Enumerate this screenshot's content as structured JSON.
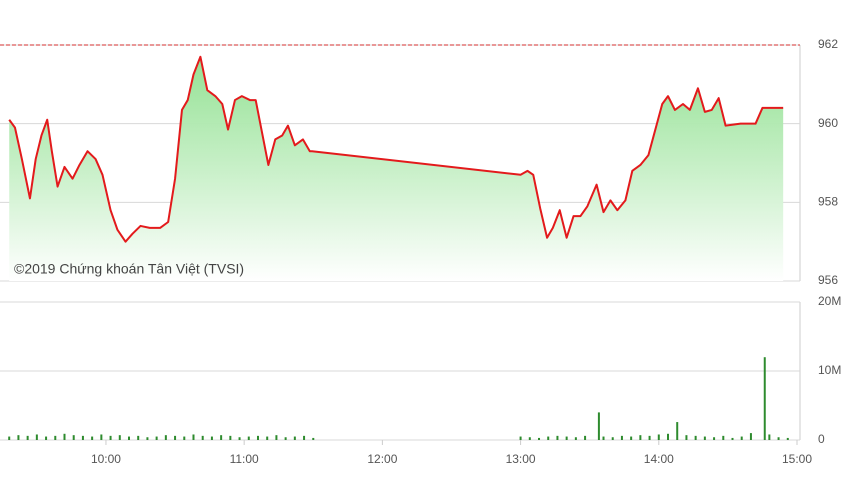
{
  "chart_data": [
    {
      "type": "line",
      "annotation": "©2019 Chứng khoán Tân Việt (TVSI)",
      "x": [
        558,
        560.5,
        563.5,
        567,
        569.5,
        572,
        574.5,
        576.5,
        579,
        582,
        585.5,
        588.5,
        592,
        595.5,
        598.5,
        602,
        605,
        608.5,
        611.5,
        615,
        619,
        623.5,
        627,
        630,
        633,
        635.5,
        638,
        641,
        644,
        647.5,
        650.5,
        653,
        656,
        659,
        662.5,
        665,
        668,
        670.5,
        673.5,
        676.5,
        679,
        682,
        685.5,
        688.5,
        689.5,
        780,
        783,
        785.5,
        788.5,
        791.5,
        794,
        797,
        800,
        803,
        806,
        809,
        813,
        816,
        819,
        822,
        825.5,
        828.5,
        832,
        835.5,
        838.5,
        841.5,
        844,
        847,
        850.5,
        853.5,
        857,
        860,
        863,
        866,
        869,
        875.5,
        882,
        885,
        894
      ],
      "values": [
        960.1,
        959.9,
        959.1,
        958.1,
        959.1,
        959.7,
        960.1,
        959.3,
        958.4,
        958.9,
        958.6,
        958.95,
        959.3,
        959.1,
        958.7,
        957.8,
        957.3,
        957.0,
        957.2,
        957.4,
        957.35,
        957.35,
        957.5,
        958.6,
        960.35,
        960.6,
        961.25,
        961.7,
        960.85,
        960.7,
        960.5,
        959.85,
        960.6,
        960.7,
        960.6,
        960.6,
        959.7,
        958.95,
        959.6,
        959.7,
        959.95,
        959.45,
        959.6,
        959.3,
        959.3,
        958.7,
        958.8,
        958.7,
        957.85,
        957.1,
        957.35,
        957.8,
        957.1,
        957.65,
        957.65,
        957.9,
        958.45,
        957.75,
        958.05,
        957.8,
        958.05,
        958.8,
        958.95,
        959.2,
        959.85,
        960.5,
        960.7,
        960.35,
        960.5,
        960.35,
        960.9,
        960.3,
        960.35,
        960.65,
        959.95,
        960.0,
        960.0,
        960.4,
        960.4
      ],
      "color": "#e31a1c",
      "fill_color": "#8fe08f",
      "reference_line": 962,
      "reference_color": "#d32f2f",
      "xlim": [
        554,
        900
      ],
      "ylim": [
        956,
        962
      ],
      "yticks": [
        956,
        958,
        960,
        962
      ],
      "grid": true
    },
    {
      "type": "bar",
      "x": [
        558,
        562,
        566,
        570,
        574,
        578,
        582,
        586,
        590,
        594,
        598,
        602,
        606,
        610,
        614,
        618,
        622,
        626,
        630,
        634,
        638,
        642,
        646,
        650,
        654,
        658,
        662,
        666,
        670,
        674,
        678,
        682,
        686,
        690,
        780,
        784,
        788,
        792,
        796,
        800,
        804,
        808,
        814,
        816,
        820,
        824,
        828,
        832,
        836,
        840,
        844,
        848,
        852,
        856,
        860,
        864,
        868,
        872,
        876,
        880,
        886,
        888,
        892,
        896
      ],
      "values": [
        500000,
        700000,
        600000,
        800000,
        500000,
        600000,
        900000,
        700000,
        600000,
        500000,
        800000,
        600000,
        700000,
        500000,
        600000,
        400000,
        500000,
        700000,
        600000,
        500000,
        800000,
        600000,
        500000,
        700000,
        600000,
        400000,
        500000,
        600000,
        500000,
        700000,
        400000,
        500000,
        600000,
        300000,
        500000,
        400000,
        300000,
        500000,
        600000,
        500000,
        400000,
        600000,
        4000000,
        500000,
        400000,
        600000,
        500000,
        700000,
        600000,
        800000,
        900000,
        2600000,
        700000,
        600000,
        500000,
        400000,
        600000,
        300000,
        500000,
        1000000,
        12000000,
        800000,
        400000,
        300000
      ],
      "color": "#2e8b2e",
      "xlim": [
        554,
        900
      ],
      "ylim": [
        0,
        20000000
      ],
      "yticks": [
        0,
        {
          "value": 10000000,
          "label": "10M"
        },
        {
          "value": 20000000,
          "label": "20M"
        }
      ],
      "xticks": [
        {
          "value": 600,
          "label": "10:00"
        },
        {
          "value": 660,
          "label": "11:00"
        },
        {
          "value": 720,
          "label": "12:00"
        },
        {
          "value": 780,
          "label": "13:00"
        },
        {
          "value": 840,
          "label": "14:00"
        },
        {
          "value": 900,
          "label": "15:00"
        }
      ],
      "grid": true
    }
  ]
}
